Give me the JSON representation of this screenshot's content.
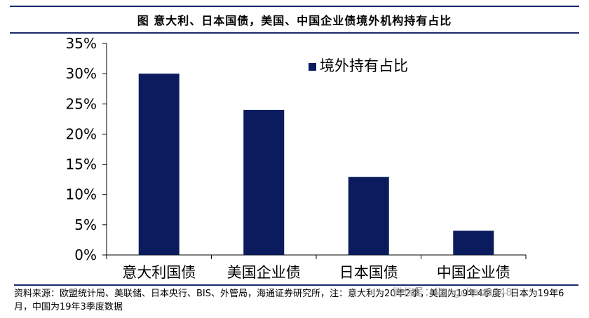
{
  "header": {
    "title": "图  意大利、日本国债，美国、中国企业债境外机构持有占比"
  },
  "source": {
    "text": "资料来源：欧盟统计局、美联储、日本央行、BIS、外管局，海通证券研究所，注：意大利为20年2季，美国为19年4季度，日本为19年6月，中国为19年3季度数据"
  },
  "watermark": {
    "text": "微信号：liangchao8848"
  },
  "chart_data": {
    "type": "bar",
    "title": "",
    "xlabel": "",
    "ylabel": "",
    "categories": [
      "意大利国债",
      "美国企业债",
      "日本国债",
      "中国企业债"
    ],
    "series": [
      {
        "name": "境外持有占比",
        "values": [
          30,
          24,
          12.9,
          4
        ],
        "color": "#0b1c5e"
      }
    ],
    "ylim": [
      0,
      35
    ],
    "yticks": [
      0,
      5,
      10,
      15,
      20,
      25,
      30,
      35
    ],
    "ytick_labels": [
      "0%",
      "5%",
      "10%",
      "15%",
      "20%",
      "25%",
      "30%",
      "35%"
    ],
    "grid": false,
    "legend": {
      "position": "top-right"
    }
  }
}
